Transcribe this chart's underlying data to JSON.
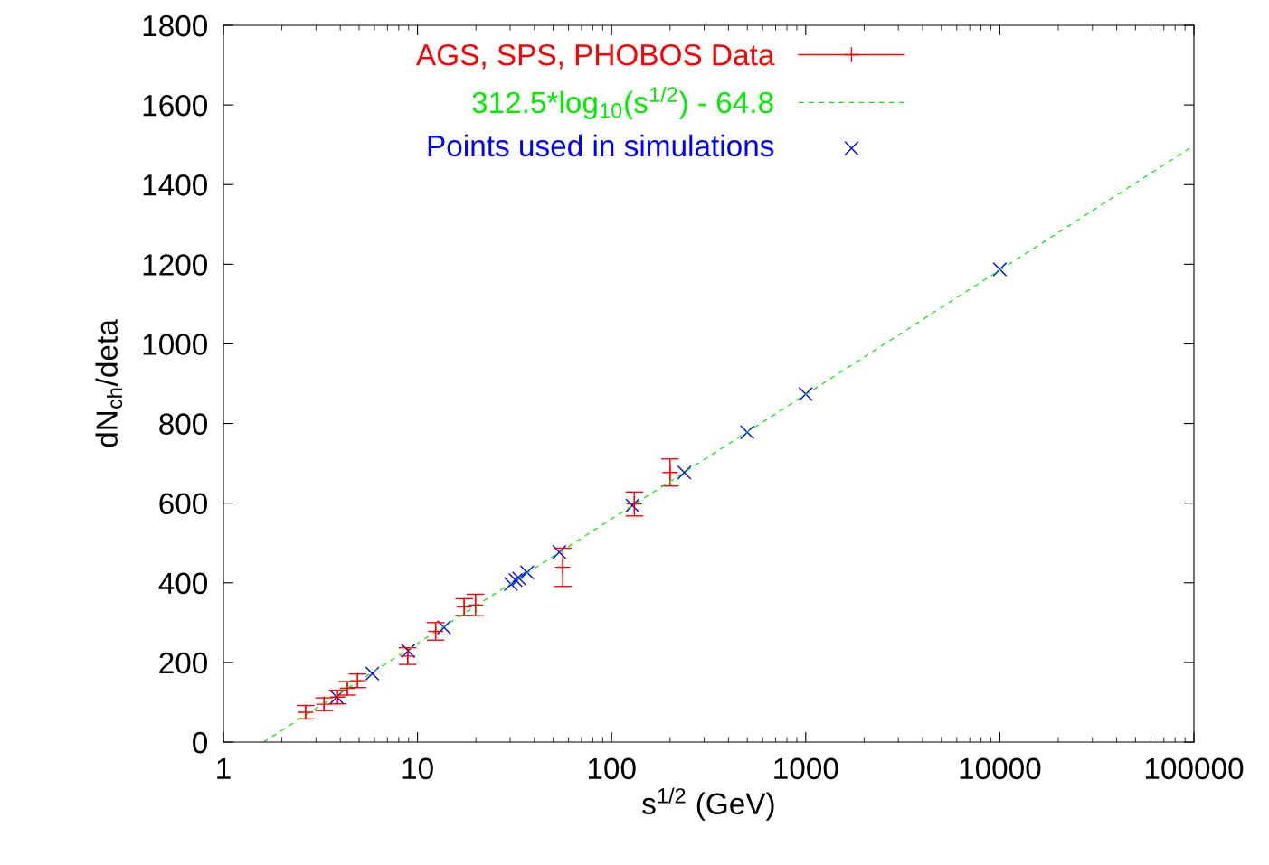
{
  "chart_data": {
    "type": "scatter",
    "xlabel": "s$^{1/2}$ (GeV)",
    "ylabel": "dN$_{ch}$/deta",
    "log": "x",
    "xlim": [
      1,
      100000
    ],
    "xticks": [
      1,
      10,
      100,
      1000,
      10000,
      100000
    ],
    "ylim": [
      0,
      1800
    ],
    "yticks": [
      0,
      200,
      400,
      600,
      800,
      1000,
      1200,
      1400,
      1600,
      1800
    ],
    "grid": false,
    "legend": "top",
    "series": [
      {
        "name": "AGS, SPS, PHOBOS Data",
        "type": "scatter",
        "marker": "cross",
        "color": "#ff0000",
        "x": [
          2.65,
          3.3,
          3.88,
          4.35,
          4.91,
          8.9,
          12.4,
          17.4,
          19.9,
          56,
          131,
          200
        ],
        "values": [
          75,
          95,
          113,
          135,
          154,
          216,
          278,
          339,
          344,
          439,
          598,
          677
        ],
        "errors": [
          17,
          16,
          17,
          17,
          17,
          21,
          22,
          21,
          27,
          48,
          30,
          34
        ]
      },
      {
        "name": "312.5*log$_{10}$(s$^{1/2}$) - 64.8",
        "type": "line",
        "line_style": "dashed",
        "color": "#00ee00",
        "x": [
          1.61,
          100000
        ],
        "values": [
          0,
          1498
        ]
      },
      {
        "name": "Points used in simulations",
        "type": "scatter",
        "marker": "cross",
        "color": "#0000ff",
        "x": [
          3.84,
          5.85,
          8.95,
          13.7,
          30.3,
          32,
          33.4,
          36.7,
          53.8,
          128,
          237,
          500,
          1000,
          10000
        ],
        "values": [
          113,
          172,
          229,
          288,
          397,
          407,
          411,
          426,
          477,
          594,
          677,
          778,
          874,
          1187
        ]
      }
    ]
  }
}
